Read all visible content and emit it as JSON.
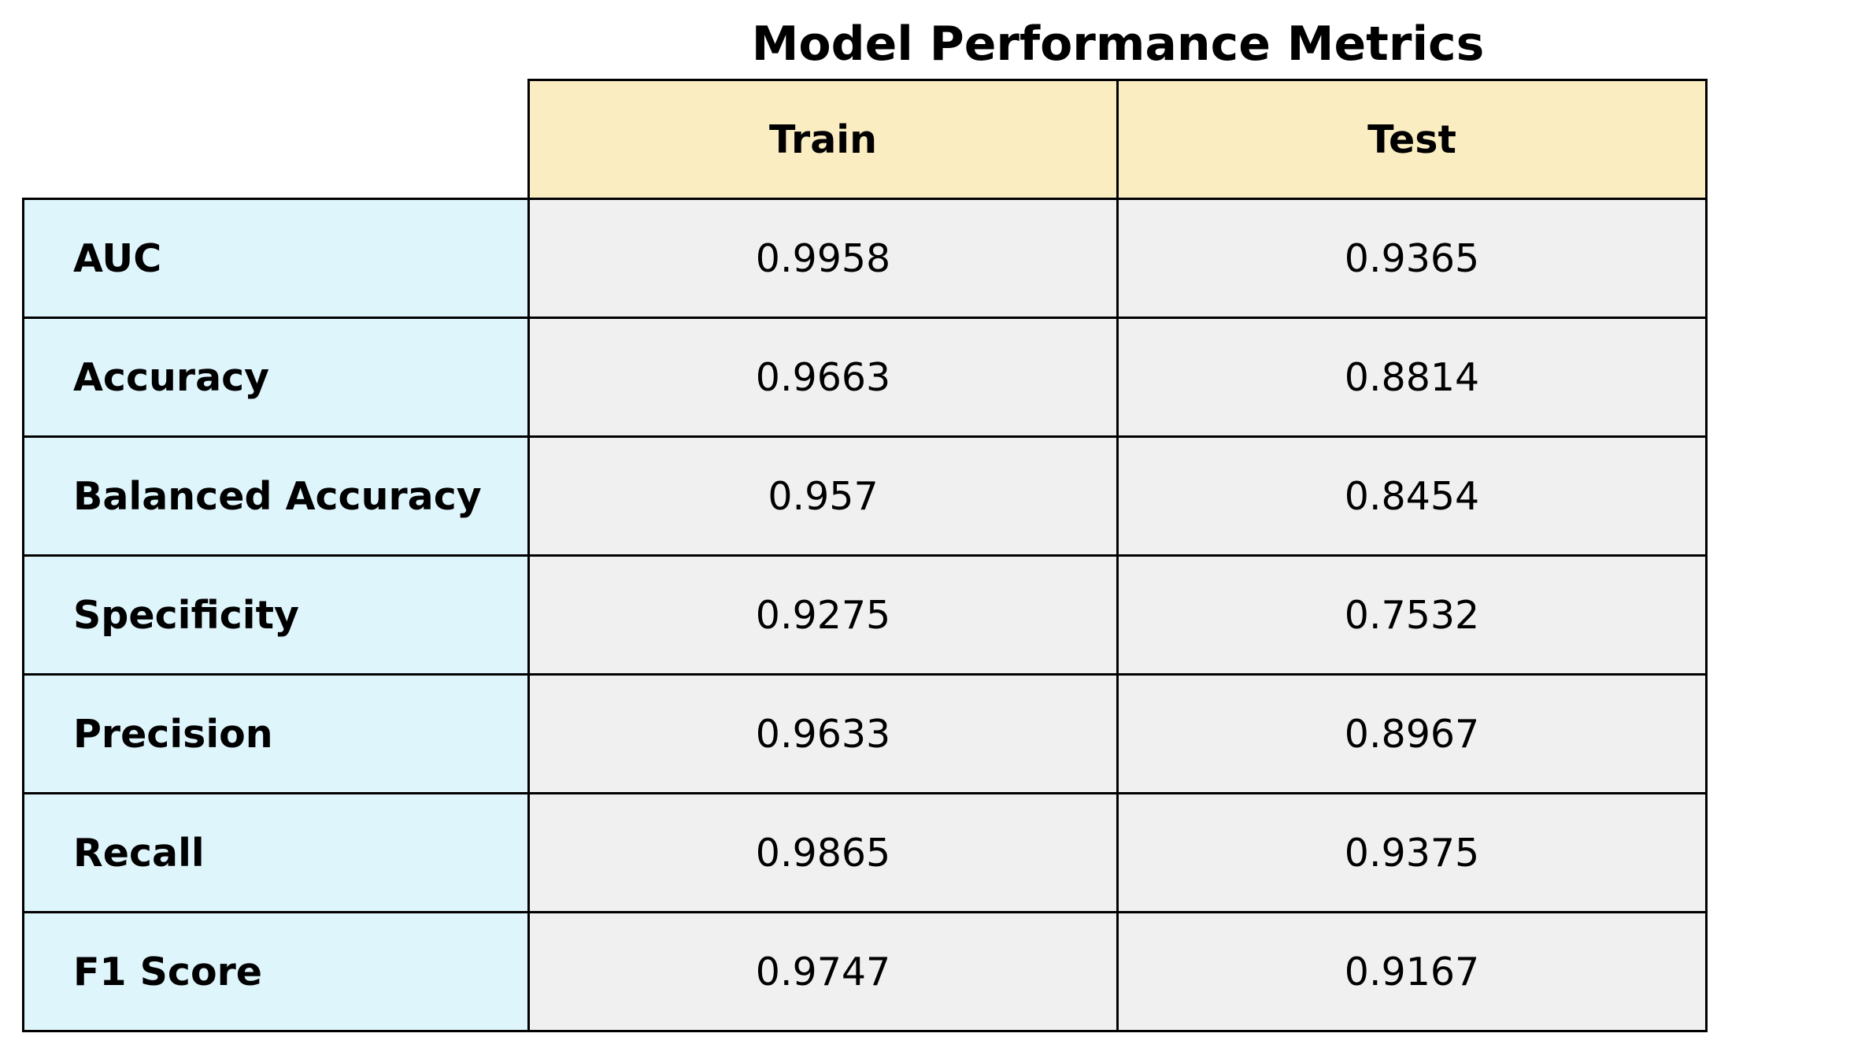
{
  "chart_data": {
    "type": "table",
    "title": "Model Performance Metrics",
    "columns": [
      "Train",
      "Test"
    ],
    "rows": [
      {
        "metric": "AUC",
        "values": [
          "0.9958",
          "0.9365"
        ]
      },
      {
        "metric": "Accuracy",
        "values": [
          "0.9663",
          "0.8814"
        ]
      },
      {
        "metric": "Balanced Accuracy",
        "values": [
          "0.957",
          "0.8454"
        ]
      },
      {
        "metric": "Specificity",
        "values": [
          "0.9275",
          "0.7532"
        ]
      },
      {
        "metric": "Precision",
        "values": [
          "0.9633",
          "0.8967"
        ]
      },
      {
        "metric": "Recall",
        "values": [
          "0.9865",
          "0.9375"
        ]
      },
      {
        "metric": "F1 Score",
        "values": [
          "0.9747",
          "0.9167"
        ]
      }
    ]
  },
  "colors": {
    "header_bg": "#faedc2",
    "row_label_bg": "#dff5fc",
    "value_bg": "#f0f0f0",
    "border": "#000000",
    "text": "#000000"
  }
}
